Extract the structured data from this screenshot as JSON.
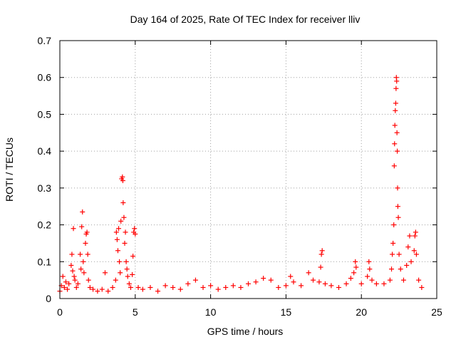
{
  "chart_data": {
    "type": "scatter",
    "title": "Day 164 of 2025, Rate Of TEC Index for receiver lliv",
    "xlabel": "GPS time / hours",
    "ylabel": "ROTI / TECUs",
    "xlim": [
      0,
      25
    ],
    "ylim": [
      0,
      0.7
    ],
    "xticks": [
      0,
      5,
      10,
      15,
      20,
      25
    ],
    "xtick_labels": [
      "0",
      "5",
      "10",
      "15",
      "20",
      "25"
    ],
    "yticks": [
      0,
      0.1,
      0.2,
      0.3,
      0.4,
      0.5,
      0.6,
      0.7
    ],
    "ytick_labels": [
      "0",
      "0.1",
      "0.2",
      "0.3",
      "0.4",
      "0.5",
      "0.6",
      "0.7"
    ],
    "grid": true,
    "marker": "+",
    "series": [
      {
        "name": "ROTI",
        "color": "#ff0000",
        "points": [
          [
            0.0,
            0.02
          ],
          [
            0.1,
            0.035
          ],
          [
            0.2,
            0.06
          ],
          [
            0.3,
            0.03
          ],
          [
            0.4,
            0.045
          ],
          [
            0.5,
            0.025
          ],
          [
            0.6,
            0.04
          ],
          [
            0.75,
            0.09
          ],
          [
            0.8,
            0.12
          ],
          [
            0.85,
            0.075
          ],
          [
            0.9,
            0.19
          ],
          [
            0.95,
            0.06
          ],
          [
            1.0,
            0.05
          ],
          [
            1.1,
            0.03
          ],
          [
            1.2,
            0.04
          ],
          [
            1.35,
            0.12
          ],
          [
            1.4,
            0.08
          ],
          [
            1.45,
            0.195
          ],
          [
            1.5,
            0.235
          ],
          [
            1.55,
            0.1
          ],
          [
            1.6,
            0.07
          ],
          [
            1.7,
            0.15
          ],
          [
            1.75,
            0.175
          ],
          [
            1.8,
            0.18
          ],
          [
            1.85,
            0.12
          ],
          [
            1.9,
            0.05
          ],
          [
            2.0,
            0.03
          ],
          [
            2.2,
            0.025
          ],
          [
            2.5,
            0.02
          ],
          [
            2.8,
            0.025
          ],
          [
            3.0,
            0.07
          ],
          [
            3.2,
            0.02
          ],
          [
            3.5,
            0.03
          ],
          [
            3.7,
            0.05
          ],
          [
            3.75,
            0.18
          ],
          [
            3.8,
            0.16
          ],
          [
            3.85,
            0.13
          ],
          [
            3.9,
            0.19
          ],
          [
            3.95,
            0.1
          ],
          [
            4.0,
            0.07
          ],
          [
            4.05,
            0.21
          ],
          [
            4.1,
            0.325
          ],
          [
            4.15,
            0.33
          ],
          [
            4.18,
            0.32
          ],
          [
            4.2,
            0.26
          ],
          [
            4.25,
            0.22
          ],
          [
            4.3,
            0.15
          ],
          [
            4.35,
            0.18
          ],
          [
            4.4,
            0.1
          ],
          [
            4.45,
            0.08
          ],
          [
            4.5,
            0.06
          ],
          [
            4.6,
            0.04
          ],
          [
            4.7,
            0.03
          ],
          [
            4.8,
            0.065
          ],
          [
            4.85,
            0.115
          ],
          [
            4.9,
            0.18
          ],
          [
            4.95,
            0.19
          ],
          [
            5.0,
            0.175
          ],
          [
            5.2,
            0.03
          ],
          [
            5.5,
            0.025
          ],
          [
            6.0,
            0.03
          ],
          [
            6.5,
            0.02
          ],
          [
            7.0,
            0.035
          ],
          [
            7.5,
            0.03
          ],
          [
            8.0,
            0.025
          ],
          [
            8.5,
            0.04
          ],
          [
            9.0,
            0.05
          ],
          [
            9.5,
            0.03
          ],
          [
            10.0,
            0.035
          ],
          [
            10.5,
            0.025
          ],
          [
            11.0,
            0.03
          ],
          [
            11.5,
            0.035
          ],
          [
            12.0,
            0.03
          ],
          [
            12.5,
            0.04
          ],
          [
            13.0,
            0.045
          ],
          [
            13.5,
            0.055
          ],
          [
            14.0,
            0.05
          ],
          [
            14.5,
            0.03
          ],
          [
            15.0,
            0.035
          ],
          [
            15.3,
            0.06
          ],
          [
            15.5,
            0.045
          ],
          [
            16.0,
            0.035
          ],
          [
            16.5,
            0.07
          ],
          [
            16.8,
            0.05
          ],
          [
            17.2,
            0.045
          ],
          [
            17.3,
            0.085
          ],
          [
            17.35,
            0.12
          ],
          [
            17.4,
            0.13
          ],
          [
            17.6,
            0.04
          ],
          [
            18.0,
            0.035
          ],
          [
            18.5,
            0.03
          ],
          [
            19.0,
            0.04
          ],
          [
            19.3,
            0.055
          ],
          [
            19.5,
            0.07
          ],
          [
            19.6,
            0.1
          ],
          [
            19.65,
            0.085
          ],
          [
            20.0,
            0.04
          ],
          [
            20.4,
            0.06
          ],
          [
            20.5,
            0.1
          ],
          [
            20.55,
            0.08
          ],
          [
            20.7,
            0.05
          ],
          [
            21.0,
            0.04
          ],
          [
            21.5,
            0.04
          ],
          [
            21.9,
            0.05
          ],
          [
            22.0,
            0.08
          ],
          [
            22.05,
            0.12
          ],
          [
            22.1,
            0.15
          ],
          [
            22.15,
            0.2
          ],
          [
            22.18,
            0.36
          ],
          [
            22.2,
            0.42
          ],
          [
            22.22,
            0.47
          ],
          [
            22.25,
            0.51
          ],
          [
            22.28,
            0.53
          ],
          [
            22.3,
            0.57
          ],
          [
            22.32,
            0.6
          ],
          [
            22.34,
            0.59
          ],
          [
            22.36,
            0.45
          ],
          [
            22.38,
            0.4
          ],
          [
            22.4,
            0.3
          ],
          [
            22.42,
            0.25
          ],
          [
            22.45,
            0.22
          ],
          [
            22.5,
            0.12
          ],
          [
            22.6,
            0.08
          ],
          [
            22.8,
            0.05
          ],
          [
            23.0,
            0.09
          ],
          [
            23.1,
            0.14
          ],
          [
            23.2,
            0.17
          ],
          [
            23.3,
            0.1
          ],
          [
            23.5,
            0.13
          ],
          [
            23.55,
            0.17
          ],
          [
            23.6,
            0.18
          ],
          [
            23.65,
            0.12
          ],
          [
            23.8,
            0.05
          ],
          [
            24.0,
            0.03
          ]
        ]
      }
    ]
  }
}
